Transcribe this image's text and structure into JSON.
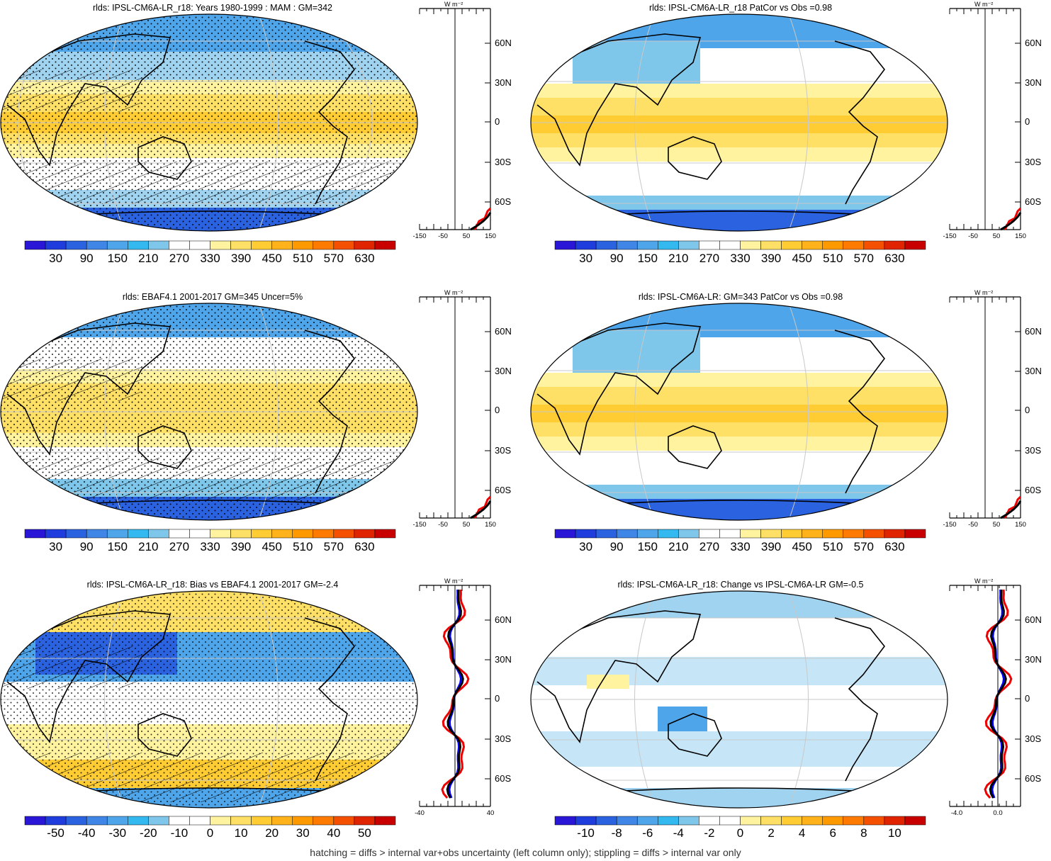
{
  "footer": "hatching = diffs > internal var+obs uncertainty (left column only); stippling = diffs > internal var only",
  "profile_unit": "W m⁻²",
  "lat_labels": [
    "60N",
    "30N",
    "0",
    "30S",
    "60S"
  ],
  "colors": {
    "scale_abs": [
      "#2a16d6",
      "#1f3ddd",
      "#2a62e0",
      "#3f86e6",
      "#4ea5ea",
      "#34b8f0",
      "#7ec6ea",
      "#ffffff",
      "#ffffff",
      "#fff3a0",
      "#ffe066",
      "#ffcc33",
      "#ffb21a",
      "#ff9900",
      "#ff7a00",
      "#f45000",
      "#e02400",
      "#c80000"
    ],
    "scale_bias": [
      "#2a16d6",
      "#1f3ddd",
      "#2a62e0",
      "#3f86e6",
      "#4ea5ea",
      "#34b8f0",
      "#7ec6ea",
      "#ffffff",
      "#ffffff",
      "#fff3a0",
      "#ffe066",
      "#ffcc33",
      "#ffb21a",
      "#ff9900",
      "#ff7a00",
      "#f45000",
      "#e02400",
      "#c80000"
    ]
  },
  "panels": [
    {
      "id": "model-mean",
      "title": "rlds: IPSL-CM6A-LR_r18: Years 1980-1999 : MAM : GM=342",
      "cbar_labels": [
        "30",
        "90",
        "150",
        "210",
        "270",
        "330",
        "390",
        "450",
        "510",
        "570",
        "630"
      ],
      "prof_ticks": [
        "-150",
        "-50",
        "50",
        "150"
      ]
    },
    {
      "id": "model-patcor",
      "title": "rlds: IPSL-CM6A-LR_r18 PatCor vs Obs =0.98",
      "cbar_labels": [
        "30",
        "90",
        "150",
        "210",
        "270",
        "330",
        "390",
        "450",
        "510",
        "570",
        "630"
      ],
      "prof_ticks": [
        "-150",
        "-50",
        "50",
        "150"
      ]
    },
    {
      "id": "obs",
      "title": "rlds: EBAF4.1 2001-2017 GM=345 Uncer=5%",
      "cbar_labels": [
        "30",
        "90",
        "150",
        "210",
        "270",
        "330",
        "390",
        "450",
        "510",
        "570",
        "630"
      ],
      "prof_ticks": [
        "-150",
        "-50",
        "50",
        "150"
      ]
    },
    {
      "id": "ens",
      "title": "rlds: IPSL-CM6A-LR: GM=343 PatCor vs Obs =0.98",
      "cbar_labels": [
        "30",
        "90",
        "150",
        "210",
        "270",
        "330",
        "390",
        "450",
        "510",
        "570",
        "630"
      ],
      "prof_ticks": [
        "-150",
        "-50",
        "50",
        "150"
      ]
    },
    {
      "id": "bias",
      "title": "rlds: IPSL-CM6A-LR_r18: Bias vs EBAF4.1 2001-2017 GM=-2.4",
      "cbar_labels": [
        "-50",
        "-40",
        "-30",
        "-20",
        "-10",
        "0",
        "10",
        "20",
        "30",
        "40",
        "50"
      ],
      "prof_ticks": [
        "-40",
        "40"
      ]
    },
    {
      "id": "change",
      "title": "rlds: IPSL-CM6A-LR_r18: Change vs IPSL-CM6A-LR GM=-0.5",
      "cbar_labels": [
        "-10",
        "-8",
        "-6",
        "-4",
        "-2",
        "0",
        "2",
        "4",
        "6",
        "8",
        "10"
      ],
      "prof_ticks": [
        "-4.0",
        "0.0"
      ]
    }
  ]
}
